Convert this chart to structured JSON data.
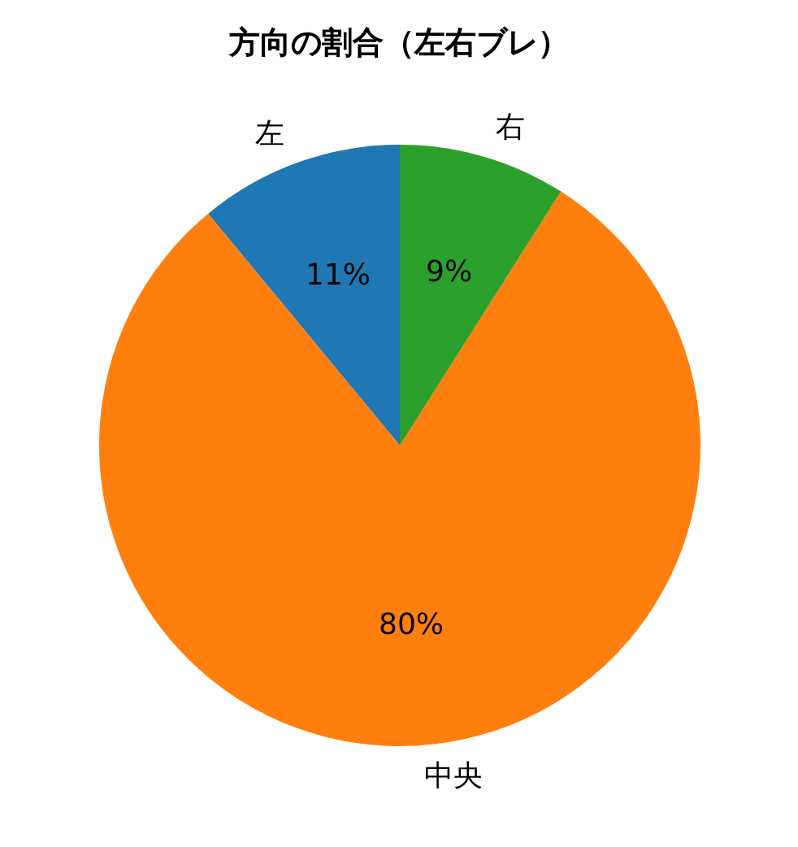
{
  "chart_data": {
    "type": "pie",
    "title": "方向の割合（左右ブレ）",
    "categories": [
      "左",
      "中央",
      "右"
    ],
    "values": [
      11,
      80,
      9
    ],
    "colors": [
      "#1f77b4",
      "#ff7f0e",
      "#2ca02c"
    ],
    "value_labels": [
      "11%",
      "80%",
      "9%"
    ],
    "legend": false
  }
}
